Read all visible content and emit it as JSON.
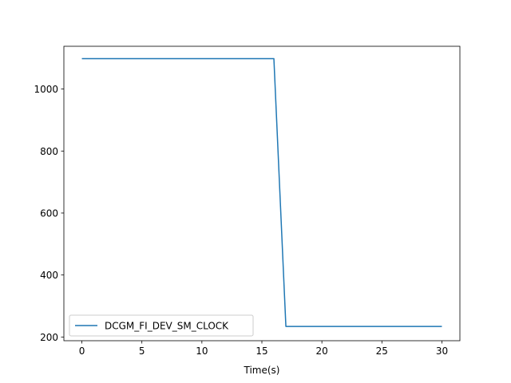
{
  "chart_data": {
    "type": "line",
    "title": "",
    "xlabel": "Time(s)",
    "ylabel": "",
    "xlim": [
      -1.5,
      31.5
    ],
    "ylim": [
      188,
      1138
    ],
    "xticks": [
      0,
      5,
      10,
      15,
      20,
      25,
      30
    ],
    "yticks": [
      200,
      400,
      600,
      800,
      1000
    ],
    "grid": false,
    "legend_position": "lower-left",
    "series": [
      {
        "name": "DCGM_FI_DEV_SM_CLOCK",
        "color": "#1f77b4",
        "x": [
          0,
          1,
          2,
          3,
          4,
          5,
          6,
          7,
          8,
          9,
          10,
          11,
          12,
          13,
          14,
          15,
          16,
          17,
          18,
          19,
          20,
          21,
          22,
          23,
          24,
          25,
          26,
          27,
          28,
          29,
          30
        ],
        "y": [
          1098,
          1098,
          1098,
          1098,
          1098,
          1098,
          1098,
          1098,
          1098,
          1098,
          1098,
          1098,
          1098,
          1098,
          1098,
          1098,
          1098,
          234,
          234,
          234,
          234,
          234,
          234,
          234,
          234,
          234,
          234,
          234,
          234,
          234,
          234
        ]
      }
    ]
  }
}
